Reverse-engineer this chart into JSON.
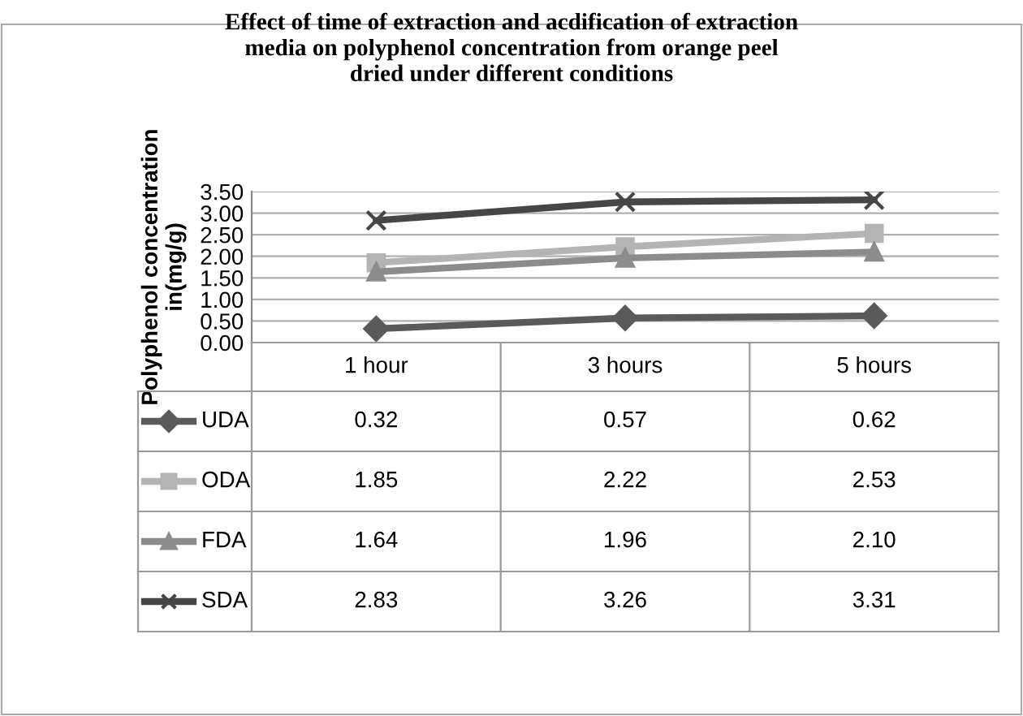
{
  "chart_data": {
    "type": "line",
    "title": "Effect of time of extraction and acdification of extraction\nmedia on polyphenol concentration from orange peel\ndried under different conditions",
    "ylabel": "Polyphenol concentration\nin(mg/g)",
    "categories": [
      "1 hour",
      "3 hours",
      "5 hours"
    ],
    "series": [
      {
        "name": "UDA",
        "color": "#5a5a5a",
        "marker": "diamond",
        "values": [
          0.32,
          0.57,
          0.62
        ],
        "value_labels": [
          "0.32",
          "0.57",
          "0.62"
        ]
      },
      {
        "name": "ODA",
        "color": "#b4b4b4",
        "marker": "square",
        "values": [
          1.85,
          2.22,
          2.53
        ],
        "value_labels": [
          "1.85",
          "2.22",
          "2.53"
        ]
      },
      {
        "name": "FDA",
        "color": "#8c8c8c",
        "marker": "triangle",
        "values": [
          1.64,
          1.96,
          2.1
        ],
        "value_labels": [
          "1.64",
          "1.96",
          "2.10"
        ]
      },
      {
        "name": "SDA",
        "color": "#464646",
        "marker": "cross",
        "values": [
          2.83,
          3.26,
          3.31
        ],
        "value_labels": [
          "2.83",
          "3.26",
          "3.31"
        ]
      }
    ],
    "ylim": [
      0,
      3.5
    ],
    "yticks": [
      {
        "value": 0,
        "label": "0.00"
      },
      {
        "value": 0.5,
        "label": "0.50"
      },
      {
        "value": 1,
        "label": "1.00"
      },
      {
        "value": 1.5,
        "label": "1.50"
      },
      {
        "value": 2,
        "label": "2.00"
      },
      {
        "value": 2.5,
        "label": "2.50"
      },
      {
        "value": 3,
        "label": "3.00"
      },
      {
        "value": 3.5,
        "label": "3.50"
      }
    ],
    "grid": "y",
    "legend": "bottom",
    "line_style": "solid"
  }
}
